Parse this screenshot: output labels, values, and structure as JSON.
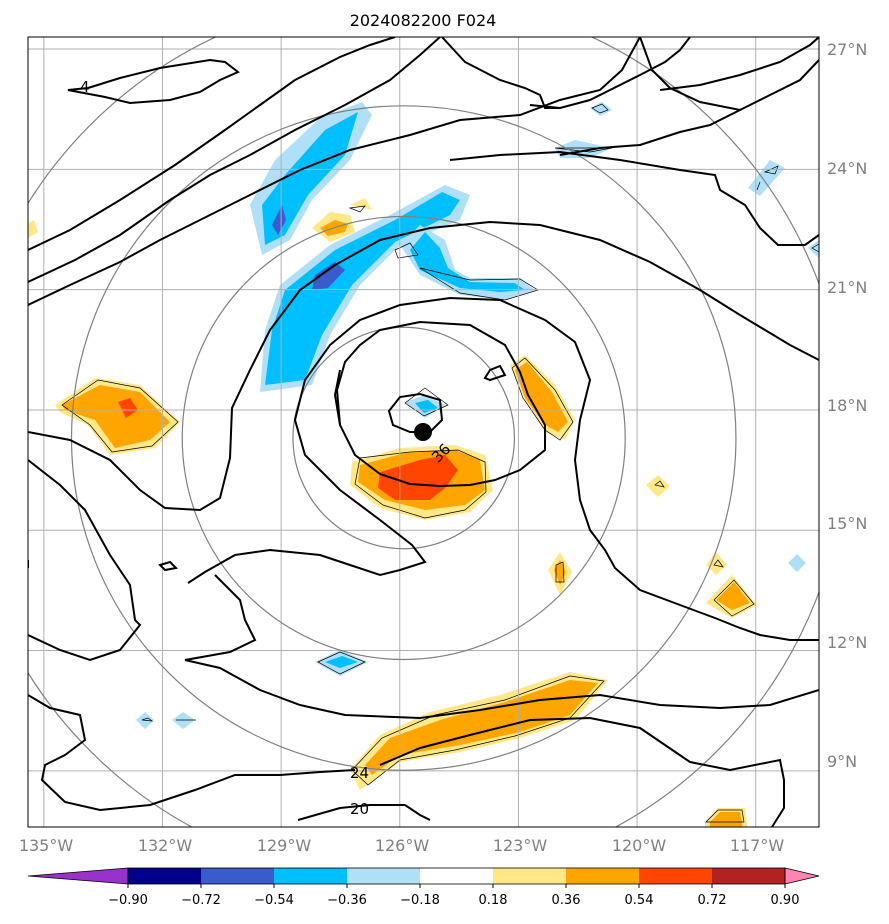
{
  "chart_data": {
    "type": "contour map",
    "title": "2024082200 F024",
    "x_ticks": [
      "135°W",
      "132°W",
      "129°W",
      "126°W",
      "123°W",
      "120°W",
      "117°W"
    ],
    "x_values": [
      -135,
      -132,
      -129,
      -126,
      -123,
      -120,
      -117
    ],
    "y_ticks": [
      "9°N",
      "12°N",
      "15°N",
      "18°N",
      "21°N",
      "24°N",
      "27°N"
    ],
    "y_values": [
      9,
      12,
      15,
      18,
      21,
      24,
      27
    ],
    "xlim": [
      -135.4,
      -115.4
    ],
    "ylim": [
      7.6,
      27.3
    ],
    "grid": true,
    "storm_center": {
      "lon": -125.9,
      "lat": 17.3
    },
    "range_rings_deg": [
      2.8,
      5.6,
      8.4,
      11.2
    ],
    "colorbar": {
      "levels": [
        "−0.90",
        "−0.72",
        "−0.54",
        "−0.36",
        "−0.18",
        "0.18",
        "0.36",
        "0.54",
        "0.72",
        "0.90"
      ],
      "colors": [
        "#9932cc",
        "#00008b",
        "#3a5bcc",
        "#00bfff",
        "#afe0f8",
        "#ffffff",
        "#ffe888",
        "#ffa500",
        "#ff4500",
        "#b22222",
        "#ff85b0"
      ],
      "extend": "both"
    },
    "contour_labels": [
      {
        "text": "4",
        "lon": -133.7,
        "lat": 26.2
      },
      {
        "text": "36",
        "lon": -125.4,
        "lat": 16.9
      },
      {
        "text": "24",
        "lon": -126.3,
        "lat": 8.8
      },
      {
        "text": "20",
        "lon": -126.3,
        "lat": 8.0
      }
    ]
  }
}
